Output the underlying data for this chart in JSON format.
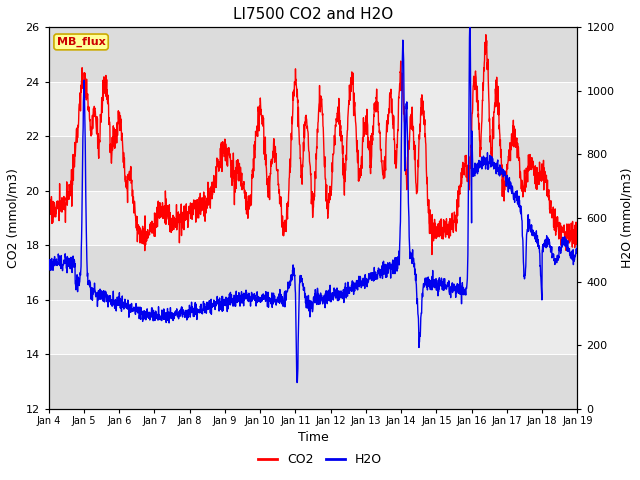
{
  "title": "LI7500 CO2 and H2O",
  "xlabel": "Time",
  "ylabel_left": "CO2 (mmol/m3)",
  "ylabel_right": "H2O (mmol/m3)",
  "ylim_left": [
    12,
    26
  ],
  "ylim_right": [
    0,
    1200
  ],
  "yticks_left": [
    12,
    14,
    16,
    18,
    20,
    22,
    24,
    26
  ],
  "yticks_right": [
    0,
    200,
    400,
    600,
    800,
    1000,
    1200
  ],
  "xtick_labels": [
    "Jan 4",
    "Jan 5",
    "Jan 6",
    "Jan 7",
    "Jan 8",
    "Jan 9",
    "Jan 10",
    "Jan 11",
    "Jan 12",
    "Jan 13",
    "Jan 14",
    "Jan 15",
    "Jan 16",
    "Jan 17",
    "Jan 18",
    "Jan 19"
  ],
  "co2_color": "#FF0000",
  "h2o_color": "#0000EE",
  "bg_color": "#FFFFFF",
  "band_dark": "#DCDCDC",
  "band_light": "#EBEBEB",
  "annotation_text": "MB_flux",
  "annotation_bg": "#FFFF99",
  "annotation_border": "#CCAA00",
  "legend_co2": "CO2",
  "legend_h2o": "H2O",
  "title_fontsize": 11,
  "axis_fontsize": 9,
  "tick_fontsize": 8,
  "legend_fontsize": 9,
  "linewidth": 1.0
}
